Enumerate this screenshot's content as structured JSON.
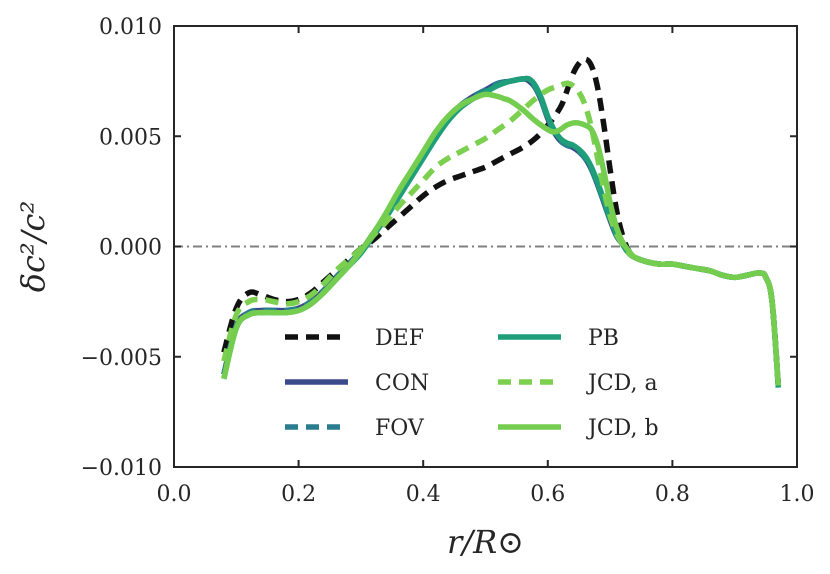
{
  "chart_data": {
    "type": "line",
    "xlabel": "r/R⊙",
    "ylabel": "δc²/c²",
    "xlim": [
      0.0,
      1.0
    ],
    "ylim": [
      -0.01,
      0.01
    ],
    "xticks": [
      0.0,
      0.2,
      0.4,
      0.6,
      0.8,
      1.0
    ],
    "xtick_labels": [
      "0.0",
      "0.2",
      "0.4",
      "0.6",
      "0.8",
      "1.0"
    ],
    "yticks": [
      -0.01,
      -0.005,
      0.0,
      0.005,
      0.01
    ],
    "ytick_labels": [
      "−0.010",
      "−0.005",
      "0.000",
      "0.005",
      "0.010"
    ],
    "grid": false,
    "legend_position": "lower-center",
    "reference_line": {
      "y": 0.0,
      "style": "dashdot",
      "color": "#808080"
    },
    "series": [
      {
        "name": "DEF",
        "color": "#111111",
        "dash": "dashed",
        "x": [
          0.08,
          0.1,
          0.12,
          0.14,
          0.16,
          0.18,
          0.2,
          0.22,
          0.24,
          0.26,
          0.28,
          0.3,
          0.32,
          0.34,
          0.36,
          0.38,
          0.4,
          0.42,
          0.44,
          0.46,
          0.48,
          0.5,
          0.52,
          0.54,
          0.56,
          0.58,
          0.6,
          0.62,
          0.63,
          0.64,
          0.65,
          0.66,
          0.67,
          0.68,
          0.69,
          0.7,
          0.71,
          0.72,
          0.73,
          0.74,
          0.76,
          0.78,
          0.8,
          0.82,
          0.84,
          0.86,
          0.88,
          0.9,
          0.92,
          0.94,
          0.95,
          0.96,
          0.97
        ],
        "y": [
          -0.0048,
          -0.0028,
          -0.0021,
          -0.0022,
          -0.0024,
          -0.0025,
          -0.0024,
          -0.0021,
          -0.0016,
          -0.0011,
          -0.0006,
          -0.0001,
          0.0003,
          0.0008,
          0.0013,
          0.0018,
          0.0023,
          0.0027,
          0.003,
          0.0032,
          0.0034,
          0.0036,
          0.0039,
          0.0042,
          0.0045,
          0.0049,
          0.0055,
          0.0063,
          0.007,
          0.0078,
          0.0083,
          0.0085,
          0.0082,
          0.0072,
          0.0055,
          0.0035,
          0.0017,
          0.0005,
          -0.0002,
          -0.0005,
          -0.0007,
          -0.0008,
          -0.0008,
          -0.0009,
          -0.001,
          -0.0011,
          -0.0013,
          -0.0014,
          -0.0013,
          -0.0012,
          -0.0014,
          -0.0025,
          -0.0063
        ]
      },
      {
        "name": "CON",
        "color": "#3b4a8c",
        "dash": "solid",
        "x": [
          0.08,
          0.1,
          0.12,
          0.14,
          0.16,
          0.18,
          0.2,
          0.22,
          0.24,
          0.26,
          0.28,
          0.3,
          0.32,
          0.34,
          0.36,
          0.38,
          0.4,
          0.42,
          0.44,
          0.46,
          0.48,
          0.5,
          0.52,
          0.54,
          0.56,
          0.57,
          0.58,
          0.59,
          0.6,
          0.61,
          0.62,
          0.63,
          0.64,
          0.65,
          0.66,
          0.67,
          0.68,
          0.69,
          0.7,
          0.71,
          0.72,
          0.73,
          0.74,
          0.76,
          0.78,
          0.8,
          0.82,
          0.84,
          0.86,
          0.88,
          0.9,
          0.92,
          0.94,
          0.95,
          0.96,
          0.97
        ],
        "y": [
          -0.0058,
          -0.0036,
          -0.003,
          -0.0029,
          -0.0029,
          -0.0029,
          -0.0028,
          -0.0025,
          -0.002,
          -0.0014,
          -0.0008,
          -0.0002,
          0.0006,
          0.0014,
          0.0023,
          0.0032,
          0.0041,
          0.005,
          0.0058,
          0.0064,
          0.0068,
          0.0071,
          0.0074,
          0.0075,
          0.0076,
          0.0075,
          0.0072,
          0.0066,
          0.0058,
          0.0052,
          0.0048,
          0.0046,
          0.0045,
          0.0043,
          0.004,
          0.0035,
          0.0028,
          0.002,
          0.0012,
          0.0005,
          0.0001,
          -0.0003,
          -0.0005,
          -0.0007,
          -0.0008,
          -0.0008,
          -0.0009,
          -0.001,
          -0.0011,
          -0.0013,
          -0.0014,
          -0.0013,
          -0.0012,
          -0.0014,
          -0.0025,
          -0.0063
        ]
      },
      {
        "name": "FOV",
        "color": "#2a7d8e",
        "dash": "dashed",
        "x": [
          0.08,
          0.1,
          0.12,
          0.14,
          0.16,
          0.18,
          0.2,
          0.22,
          0.24,
          0.26,
          0.28,
          0.3,
          0.32,
          0.34,
          0.36,
          0.38,
          0.4,
          0.42,
          0.44,
          0.46,
          0.48,
          0.5,
          0.52,
          0.54,
          0.56,
          0.57,
          0.58,
          0.59,
          0.6,
          0.61,
          0.62,
          0.63,
          0.64,
          0.65,
          0.66,
          0.67,
          0.68,
          0.69,
          0.7,
          0.71,
          0.72,
          0.73,
          0.74,
          0.76,
          0.78,
          0.8,
          0.82,
          0.84,
          0.86,
          0.88,
          0.9,
          0.92,
          0.94,
          0.95,
          0.96,
          0.97
        ],
        "y": [
          -0.0058,
          -0.0036,
          -0.003,
          -0.0029,
          -0.0029,
          -0.0029,
          -0.0028,
          -0.0025,
          -0.002,
          -0.0014,
          -0.0008,
          -0.0002,
          0.0006,
          0.0014,
          0.0023,
          0.0032,
          0.0041,
          0.005,
          0.0058,
          0.0064,
          0.0068,
          0.0071,
          0.0074,
          0.0075,
          0.0076,
          0.0075,
          0.0072,
          0.0066,
          0.0058,
          0.0052,
          0.0048,
          0.0046,
          0.0045,
          0.0043,
          0.004,
          0.0035,
          0.0028,
          0.002,
          0.0012,
          0.0005,
          0.0001,
          -0.0003,
          -0.0005,
          -0.0007,
          -0.0008,
          -0.0008,
          -0.0009,
          -0.001,
          -0.0011,
          -0.0013,
          -0.0014,
          -0.0013,
          -0.0012,
          -0.0014,
          -0.0025,
          -0.0063
        ]
      },
      {
        "name": "PB",
        "color": "#1f9e7a",
        "dash": "solid",
        "x": [
          0.08,
          0.1,
          0.12,
          0.14,
          0.16,
          0.18,
          0.2,
          0.22,
          0.24,
          0.26,
          0.28,
          0.3,
          0.32,
          0.34,
          0.36,
          0.38,
          0.4,
          0.42,
          0.44,
          0.46,
          0.48,
          0.5,
          0.52,
          0.54,
          0.56,
          0.57,
          0.58,
          0.59,
          0.6,
          0.61,
          0.62,
          0.63,
          0.64,
          0.65,
          0.66,
          0.67,
          0.68,
          0.69,
          0.7,
          0.71,
          0.72,
          0.73,
          0.74,
          0.76,
          0.78,
          0.8,
          0.82,
          0.84,
          0.86,
          0.88,
          0.9,
          0.92,
          0.94,
          0.95,
          0.96,
          0.97
        ],
        "y": [
          -0.006,
          -0.0037,
          -0.0031,
          -0.003,
          -0.003,
          -0.003,
          -0.0029,
          -0.0026,
          -0.0021,
          -0.0015,
          -0.0009,
          -0.0003,
          0.0005,
          0.0013,
          0.0022,
          0.0031,
          0.004,
          0.0049,
          0.0057,
          0.0063,
          0.0067,
          0.007,
          0.0073,
          0.0075,
          0.0076,
          0.0076,
          0.0073,
          0.0067,
          0.0059,
          0.0053,
          0.0049,
          0.0047,
          0.0046,
          0.0044,
          0.0041,
          0.0036,
          0.0029,
          0.0021,
          0.0013,
          0.0006,
          0.0001,
          -0.0003,
          -0.0005,
          -0.0007,
          -0.0008,
          -0.0008,
          -0.0009,
          -0.001,
          -0.0011,
          -0.0013,
          -0.0014,
          -0.0013,
          -0.0012,
          -0.0014,
          -0.0025,
          -0.0064
        ]
      },
      {
        "name": "JCD, a",
        "color": "#7ccf4f",
        "dash": "dashed",
        "x": [
          0.08,
          0.1,
          0.12,
          0.14,
          0.16,
          0.18,
          0.2,
          0.22,
          0.24,
          0.26,
          0.28,
          0.3,
          0.32,
          0.34,
          0.36,
          0.38,
          0.4,
          0.42,
          0.44,
          0.46,
          0.48,
          0.5,
          0.52,
          0.54,
          0.56,
          0.58,
          0.6,
          0.62,
          0.63,
          0.64,
          0.65,
          0.66,
          0.67,
          0.68,
          0.69,
          0.7,
          0.71,
          0.72,
          0.73,
          0.74,
          0.76,
          0.78,
          0.8,
          0.82,
          0.84,
          0.86,
          0.88,
          0.9,
          0.92,
          0.94,
          0.95,
          0.96,
          0.97
        ],
        "y": [
          -0.0052,
          -0.0031,
          -0.0025,
          -0.0024,
          -0.0025,
          -0.0026,
          -0.0025,
          -0.0022,
          -0.0017,
          -0.0011,
          -0.0006,
          -0.0001,
          0.0005,
          0.0011,
          0.0018,
          0.0024,
          0.003,
          0.0036,
          0.004,
          0.0043,
          0.0046,
          0.0049,
          0.0053,
          0.0057,
          0.0062,
          0.0067,
          0.0071,
          0.0073,
          0.0074,
          0.0073,
          0.007,
          0.0064,
          0.0054,
          0.004,
          0.0026,
          0.0014,
          0.0006,
          0.0001,
          -0.0003,
          -0.0005,
          -0.0007,
          -0.0008,
          -0.0008,
          -0.0009,
          -0.001,
          -0.0011,
          -0.0013,
          -0.0014,
          -0.0013,
          -0.0012,
          -0.0014,
          -0.0025,
          -0.0063
        ]
      },
      {
        "name": "JCD, b",
        "color": "#74cd4f",
        "dash": "solid",
        "x": [
          0.08,
          0.1,
          0.12,
          0.14,
          0.16,
          0.18,
          0.2,
          0.22,
          0.24,
          0.26,
          0.28,
          0.3,
          0.32,
          0.34,
          0.36,
          0.38,
          0.4,
          0.42,
          0.44,
          0.46,
          0.48,
          0.5,
          0.52,
          0.53,
          0.54,
          0.56,
          0.58,
          0.6,
          0.61,
          0.62,
          0.63,
          0.64,
          0.65,
          0.66,
          0.67,
          0.68,
          0.69,
          0.7,
          0.71,
          0.72,
          0.73,
          0.74,
          0.76,
          0.78,
          0.8,
          0.82,
          0.84,
          0.86,
          0.88,
          0.9,
          0.92,
          0.94,
          0.95,
          0.96,
          0.97
        ],
        "y": [
          -0.006,
          -0.0037,
          -0.0031,
          -0.003,
          -0.003,
          -0.003,
          -0.0029,
          -0.0026,
          -0.0021,
          -0.0015,
          -0.0009,
          -0.0002,
          0.0006,
          0.0015,
          0.0025,
          0.0034,
          0.0043,
          0.0052,
          0.0059,
          0.0064,
          0.0067,
          0.0069,
          0.0068,
          0.0067,
          0.0066,
          0.0062,
          0.0057,
          0.0053,
          0.0052,
          0.0053,
          0.0055,
          0.0056,
          0.0056,
          0.0055,
          0.0053,
          0.0046,
          0.0034,
          0.002,
          0.0009,
          0.0002,
          -0.0002,
          -0.0005,
          -0.0007,
          -0.0008,
          -0.0008,
          -0.0009,
          -0.001,
          -0.0011,
          -0.0013,
          -0.0014,
          -0.0013,
          -0.0012,
          -0.0014,
          -0.0025,
          -0.0063
        ]
      }
    ]
  }
}
